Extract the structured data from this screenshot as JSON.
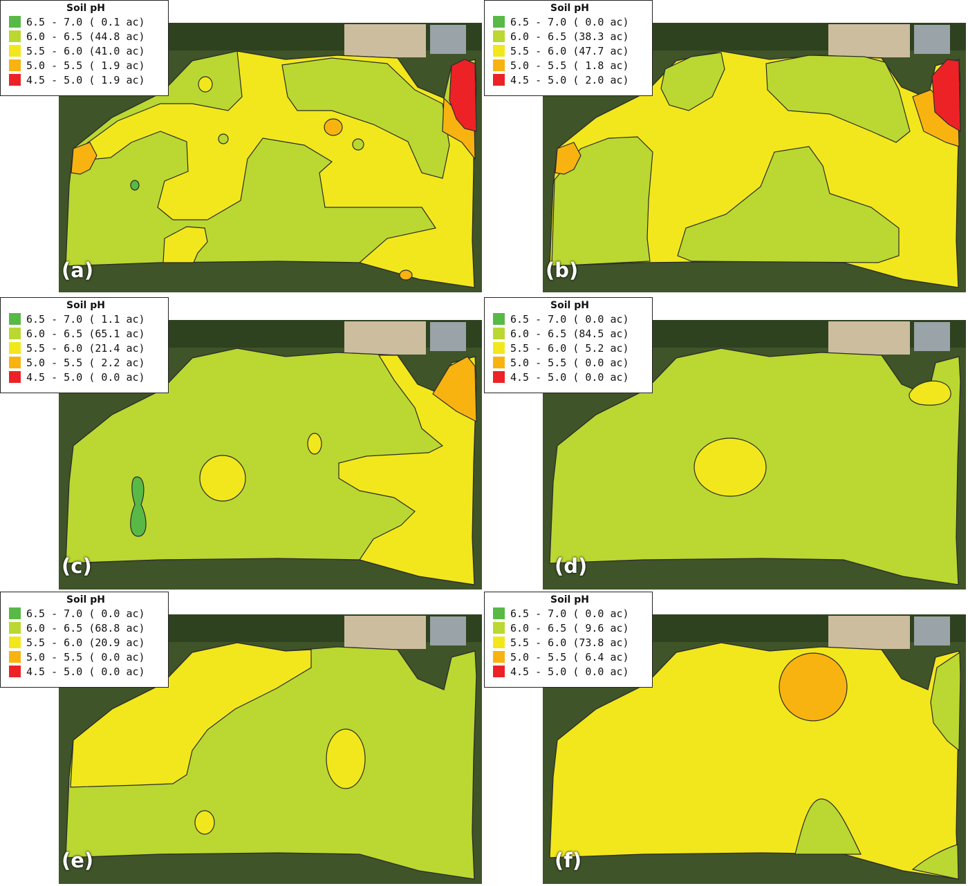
{
  "legend_title": "Soil pH",
  "colors": {
    "dark_green": "#58b947",
    "light_green": "#bad831",
    "yellow": "#f2e71c",
    "orange": "#f8b310",
    "red": "#ec2226",
    "forest": "#334a22",
    "field_bg": "#7a8a56",
    "outline": "#2b2b2b"
  },
  "panels": [
    {
      "label": "(a)",
      "legend": [
        {
          "range": "6.5 - 7.0",
          "area": "( 0.1 ac)",
          "color": "#58b947"
        },
        {
          "range": "6.0 - 6.5",
          "area": "(44.8 ac)",
          "color": "#bad831"
        },
        {
          "range": "5.5 - 6.0",
          "area": "(41.0 ac)",
          "color": "#f2e71c"
        },
        {
          "range": "5.0 - 5.5",
          "area": "( 1.9 ac)",
          "color": "#f8b310"
        },
        {
          "range": "4.5 - 5.0",
          "area": "( 1.9 ac)",
          "color": "#ec2226"
        }
      ]
    },
    {
      "label": "(b)",
      "legend": [
        {
          "range": "6.5 - 7.0",
          "area": "( 0.0 ac)",
          "color": "#58b947"
        },
        {
          "range": "6.0 - 6.5",
          "area": "(38.3 ac)",
          "color": "#bad831"
        },
        {
          "range": "5.5 - 6.0",
          "area": "(47.7 ac)",
          "color": "#f2e71c"
        },
        {
          "range": "5.0 - 5.5",
          "area": "( 1.8 ac)",
          "color": "#f8b310"
        },
        {
          "range": "4.5 - 5.0",
          "area": "( 2.0 ac)",
          "color": "#ec2226"
        }
      ]
    },
    {
      "label": "(c)",
      "legend": [
        {
          "range": "6.5 - 7.0",
          "area": "( 1.1 ac)",
          "color": "#58b947"
        },
        {
          "range": "6.0 - 6.5",
          "area": "(65.1 ac)",
          "color": "#bad831"
        },
        {
          "range": "5.5 - 6.0",
          "area": "(21.4 ac)",
          "color": "#f2e71c"
        },
        {
          "range": "5.0 - 5.5",
          "area": "( 2.2 ac)",
          "color": "#f8b310"
        },
        {
          "range": "4.5 - 5.0",
          "area": "( 0.0 ac)",
          "color": "#ec2226"
        }
      ]
    },
    {
      "label": "(d)",
      "legend": [
        {
          "range": "6.5 - 7.0",
          "area": "( 0.0 ac)",
          "color": "#58b947"
        },
        {
          "range": "6.0 - 6.5",
          "area": "(84.5 ac)",
          "color": "#bad831"
        },
        {
          "range": "5.5 - 6.0",
          "area": "( 5.2 ac)",
          "color": "#f2e71c"
        },
        {
          "range": "5.0 - 5.5",
          "area": "( 0.0 ac)",
          "color": "#f8b310"
        },
        {
          "range": "4.5 - 5.0",
          "area": "( 0.0 ac)",
          "color": "#ec2226"
        }
      ]
    },
    {
      "label": "(e)",
      "legend": [
        {
          "range": "6.5 - 7.0",
          "area": "( 0.0 ac)",
          "color": "#58b947"
        },
        {
          "range": "6.0 - 6.5",
          "area": "(68.8 ac)",
          "color": "#bad831"
        },
        {
          "range": "5.5 - 6.0",
          "area": "(20.9 ac)",
          "color": "#f2e71c"
        },
        {
          "range": "5.0 - 5.5",
          "area": "( 0.0 ac)",
          "color": "#f8b310"
        },
        {
          "range": "4.5 - 5.0",
          "area": "( 0.0 ac)",
          "color": "#ec2226"
        }
      ]
    },
    {
      "label": "(f)",
      "legend": [
        {
          "range": "6.5 - 7.0",
          "area": "( 0.0 ac)",
          "color": "#58b947"
        },
        {
          "range": "6.0 - 6.5",
          "area": "( 9.6 ac)",
          "color": "#bad831"
        },
        {
          "range": "5.5 - 6.0",
          "area": "(73.8 ac)",
          "color": "#f2e71c"
        },
        {
          "range": "5.0 - 5.5",
          "area": "( 6.4 ac)",
          "color": "#f8b310"
        },
        {
          "range": "4.5 - 5.0",
          "area": "( 0.0 ac)",
          "color": "#ec2226"
        }
      ]
    }
  ]
}
